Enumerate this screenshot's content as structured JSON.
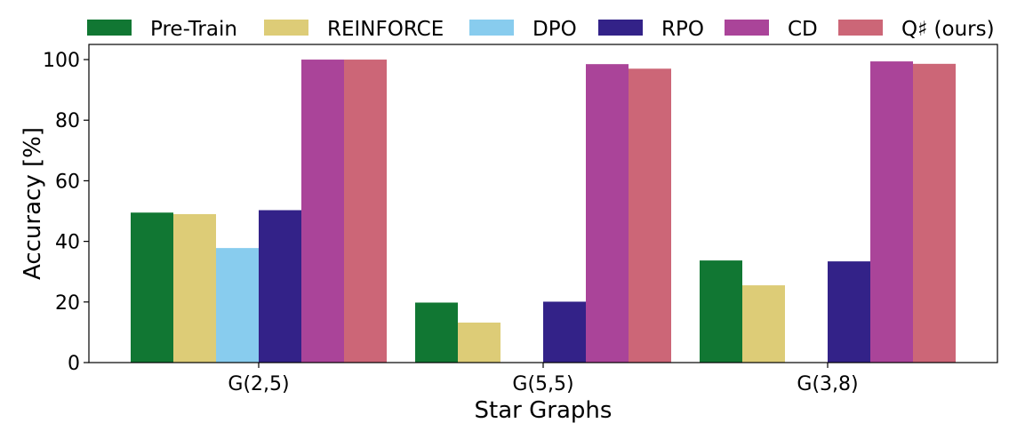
{
  "chart_data": {
    "type": "bar",
    "title": "",
    "xlabel": "Star Graphs",
    "ylabel": "Accuracy [%]",
    "ylim": [
      0,
      105
    ],
    "yticks": [
      0,
      20,
      40,
      60,
      80,
      100
    ],
    "categories": [
      "G(2,5)",
      "G(5,5)",
      "G(3,8)"
    ],
    "series": [
      {
        "name": "Pre-Train",
        "color": "#117733",
        "values": [
          49.5,
          19.8,
          33.7
        ]
      },
      {
        "name": "REINFORCE",
        "color": "#DDCC77",
        "values": [
          49.0,
          13.2,
          25.5
        ]
      },
      {
        "name": "DPO",
        "color": "#88CCEE",
        "values": [
          37.8,
          0,
          0
        ]
      },
      {
        "name": "RPO",
        "color": "#332288",
        "values": [
          50.3,
          20.1,
          33.4
        ]
      },
      {
        "name": "CD",
        "color": "#AA4499",
        "values": [
          100.0,
          98.5,
          99.4
        ]
      },
      {
        "name": "Q♯ (ours)",
        "color": "#CC6677",
        "values": [
          100.0,
          97.0,
          98.6
        ]
      }
    ],
    "legend_position": "top",
    "grid": false
  }
}
